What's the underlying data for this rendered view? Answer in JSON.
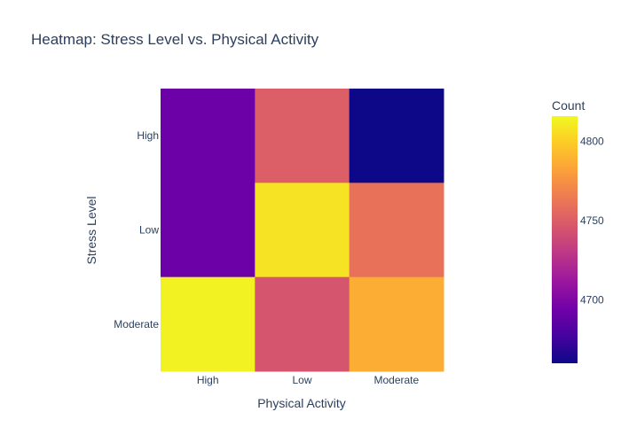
{
  "chart_data": {
    "type": "heatmap",
    "title": "Heatmap: Stress Level vs. Physical Activity",
    "xlabel": "Physical Activity",
    "ylabel": "Stress Level",
    "x_categories": [
      "High",
      "Low",
      "Moderate"
    ],
    "y_categories": [
      "High",
      "Low",
      "Moderate"
    ],
    "z": [
      [
        4692,
        4750,
        4660
      ],
      [
        4692,
        4808,
        4760
      ],
      [
        4813,
        4745,
        4787
      ]
    ],
    "colorbar": {
      "title": "Count",
      "range": [
        4660,
        4816
      ],
      "ticks": [
        4700,
        4750,
        4800
      ],
      "tick_labels": [
        "4700",
        "4750",
        "4800"
      ]
    },
    "colorscale": [
      "#0d0887",
      "#46039f",
      "#7201a8",
      "#9c179e",
      "#bd3786",
      "#d8576b",
      "#ed7953",
      "#fb9f3a",
      "#fdca26",
      "#f0f921"
    ]
  }
}
